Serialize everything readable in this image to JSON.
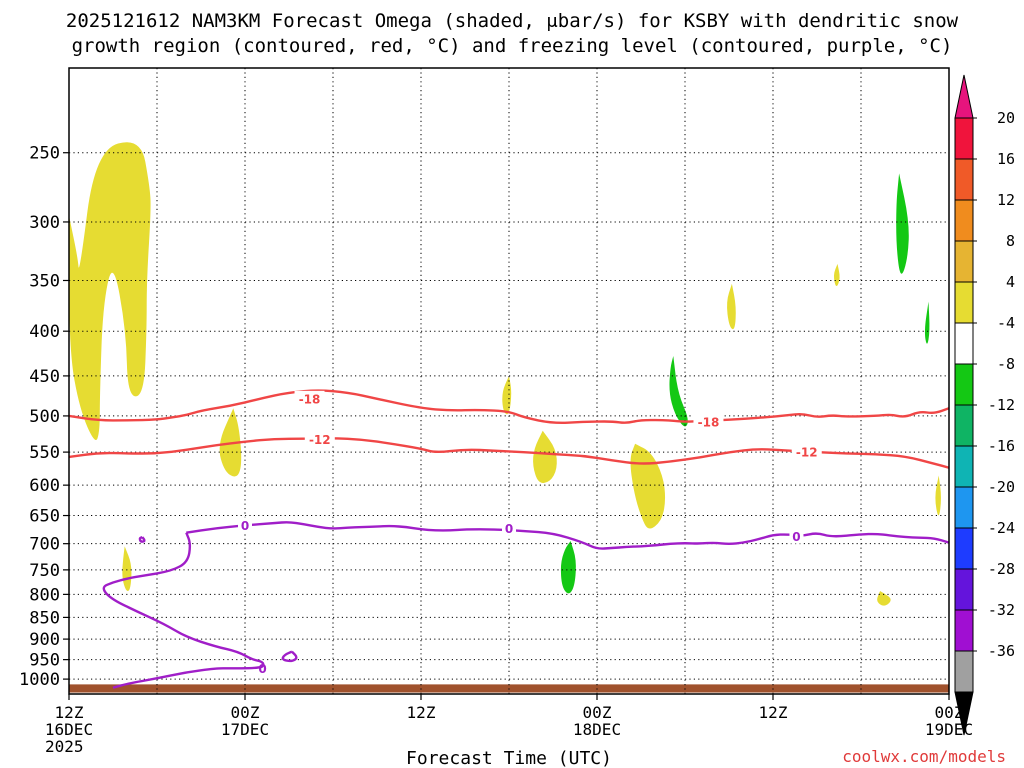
{
  "chart_data": {
    "type": "heatmap",
    "title_line1": "2025121612 NAM3KM Forecast Omega (shaded, μbar/s) for KSBY with dendritic snow",
    "title_line2": "growth region (contoured, red, °C) and freezing level (contoured, purple, °C)",
    "xlabel": "Forecast Time (UTC)",
    "credit": "coolwx.com/models",
    "x_range_hours": [
      0,
      60
    ],
    "y_range_hpa": [
      200,
      1040
    ],
    "y_scale": "log-pressure",
    "x_ticks": [
      {
        "hour": 0,
        "line1": "12Z",
        "line2": "16DEC",
        "line3": "2025"
      },
      {
        "hour": 12,
        "line1": "00Z",
        "line2": "17DEC",
        "line3": ""
      },
      {
        "hour": 24,
        "line1": "12Z",
        "line2": "",
        "line3": ""
      },
      {
        "hour": 36,
        "line1": "00Z",
        "line2": "18DEC",
        "line3": ""
      },
      {
        "hour": 48,
        "line1": "12Z",
        "line2": "",
        "line3": ""
      },
      {
        "hour": 60,
        "line1": "00Z",
        "line2": "19DEC",
        "line3": ""
      }
    ],
    "y_ticks": [
      250,
      300,
      350,
      400,
      450,
      500,
      550,
      600,
      650,
      700,
      750,
      800,
      850,
      900,
      950,
      1000
    ],
    "colorbar": {
      "levels": [
        20,
        16,
        12,
        8,
        4,
        -4,
        -8,
        -12,
        -16,
        -20,
        -24,
        -28,
        -32,
        -36
      ],
      "colors": [
        "#f0143c",
        "#f05a28",
        "#f08c1e",
        "#e6b432",
        "#e6dc32",
        "#ffffff",
        "#14c814",
        "#0fb464",
        "#0fb4b4",
        "#1e96f0",
        "#1e3cff",
        "#6414dc",
        "#a00fd2",
        "#a0a0a0"
      ],
      "top_color": "#e6147d",
      "bottom_color": "#000000"
    },
    "omega_shading": [
      {
        "color": "#e6dc32",
        "points": [
          [
            0,
            295
          ],
          [
            0.6,
            330
          ],
          [
            0.7,
            345
          ],
          [
            1.8,
            248
          ],
          [
            4.9,
            240
          ],
          [
            5.5,
            273
          ],
          [
            5.6,
            290
          ],
          [
            5.3,
            350
          ],
          [
            5.3,
            398
          ],
          [
            5.1,
            475
          ],
          [
            4.0,
            475
          ],
          [
            3.9,
            400
          ],
          [
            3.0,
            330
          ],
          [
            2.3,
            375
          ],
          [
            2.1,
            475
          ],
          [
            2.1,
            520
          ],
          [
            1.8,
            540
          ],
          [
            0.7,
            490
          ],
          [
            0,
            418
          ]
        ]
      },
      {
        "color": "#e6dc32",
        "points": [
          [
            11.2,
            490
          ],
          [
            11.6,
            515
          ],
          [
            11.8,
            565
          ],
          [
            11.5,
            590
          ],
          [
            10.6,
            580
          ],
          [
            10.1,
            540
          ]
        ]
      },
      {
        "color": "#e6dc32",
        "points": [
          [
            3.8,
            705
          ],
          [
            4.3,
            740
          ],
          [
            4.2,
            790
          ],
          [
            3.9,
            795
          ],
          [
            3.6,
            765
          ],
          [
            3.7,
            725
          ]
        ]
      },
      {
        "color": "#e6dc32",
        "points": [
          [
            30.0,
            450
          ],
          [
            30.2,
            470
          ],
          [
            30.0,
            500
          ],
          [
            29.6,
            495
          ],
          [
            29.5,
            470
          ]
        ]
      },
      {
        "color": "#e6dc32",
        "points": [
          [
            32.3,
            520
          ],
          [
            33.2,
            545
          ],
          [
            33.3,
            575
          ],
          [
            32.8,
            595
          ],
          [
            32.0,
            598
          ],
          [
            31.6,
            570
          ],
          [
            31.7,
            545
          ]
        ]
      },
      {
        "color": "#e6dc32",
        "points": [
          [
            38.6,
            538
          ],
          [
            39.7,
            550
          ],
          [
            40.5,
            585
          ],
          [
            40.7,
            625
          ],
          [
            40.4,
            660
          ],
          [
            39.5,
            678
          ],
          [
            39.0,
            652
          ],
          [
            38.5,
            610
          ],
          [
            38.2,
            560
          ]
        ]
      },
      {
        "color": "#e6dc32",
        "points": [
          [
            45.2,
            353
          ],
          [
            45.5,
            375
          ],
          [
            45.4,
            400
          ],
          [
            45.0,
            395
          ],
          [
            44.8,
            370
          ]
        ]
      },
      {
        "color": "#e6dc32",
        "points": [
          [
            52.4,
            335
          ],
          [
            52.6,
            348
          ],
          [
            52.3,
            358
          ],
          [
            52.1,
            345
          ]
        ]
      },
      {
        "color": "#e6dc32",
        "points": [
          [
            55.3,
            793
          ],
          [
            56.2,
            810
          ],
          [
            55.6,
            828
          ],
          [
            55.0,
            815
          ]
        ]
      },
      {
        "color": "#e6dc32",
        "points": [
          [
            59.3,
            585
          ],
          [
            59.5,
            620
          ],
          [
            59.3,
            660
          ],
          [
            59.0,
            620
          ]
        ]
      },
      {
        "color": "#14c814",
        "points": [
          [
            56.6,
            264
          ],
          [
            57.3,
            300
          ],
          [
            57.2,
            330
          ],
          [
            56.7,
            350
          ],
          [
            56.4,
            320
          ],
          [
            56.4,
            285
          ]
        ]
      },
      {
        "color": "#14c814",
        "points": [
          [
            58.6,
            370
          ],
          [
            58.7,
            400
          ],
          [
            58.5,
            418
          ],
          [
            58.3,
            400
          ]
        ]
      },
      {
        "color": "#14c814",
        "points": [
          [
            41.2,
            427
          ],
          [
            41.5,
            470
          ],
          [
            42.3,
            505
          ],
          [
            42.0,
            518
          ],
          [
            41.3,
            498
          ],
          [
            40.9,
            470
          ],
          [
            41.0,
            440
          ]
        ]
      },
      {
        "color": "#14c814",
        "points": [
          [
            34.2,
            695
          ],
          [
            34.6,
            730
          ],
          [
            34.5,
            780
          ],
          [
            34.1,
            803
          ],
          [
            33.6,
            785
          ],
          [
            33.5,
            740
          ],
          [
            33.8,
            710
          ]
        ]
      }
    ],
    "surface_band": {
      "color": "#a0522d",
      "top_hpa": 1014,
      "bottom_hpa": 1036
    },
    "dsg_contours": [
      {
        "value": -18,
        "label": "-18",
        "label_positions": [
          [
            16.4,
            478
          ],
          [
            43.6,
            508
          ]
        ],
        "points": [
          [
            0,
            500
          ],
          [
            2,
            506
          ],
          [
            4,
            506
          ],
          [
            6,
            505
          ],
          [
            7,
            502
          ],
          [
            8,
            499
          ],
          [
            9,
            493
          ],
          [
            11,
            487
          ],
          [
            13,
            478
          ],
          [
            15,
            470
          ],
          [
            17,
            467
          ],
          [
            19,
            470
          ],
          [
            21,
            478
          ],
          [
            24,
            490
          ],
          [
            26,
            493
          ],
          [
            28,
            492
          ],
          [
            30,
            494
          ],
          [
            31,
            502
          ],
          [
            33,
            510
          ],
          [
            35,
            508
          ],
          [
            37,
            507
          ],
          [
            38,
            510
          ],
          [
            39,
            505
          ],
          [
            41,
            506
          ],
          [
            42,
            508
          ],
          [
            44,
            506
          ],
          [
            46,
            504
          ],
          [
            48,
            501
          ],
          [
            49,
            499
          ],
          [
            50,
            497
          ],
          [
            51,
            502
          ],
          [
            52,
            499
          ],
          [
            53,
            501
          ],
          [
            55,
            500
          ],
          [
            56,
            498
          ],
          [
            57,
            502
          ],
          [
            58,
            494
          ],
          [
            59,
            497
          ],
          [
            60,
            490
          ]
        ]
      },
      {
        "value": -12,
        "label": "-12",
        "label_positions": [
          [
            17.1,
            532
          ],
          [
            50.3,
            550
          ]
        ],
        "points": [
          [
            0,
            557
          ],
          [
            2,
            551
          ],
          [
            4,
            552
          ],
          [
            6,
            552
          ],
          [
            8,
            547
          ],
          [
            10,
            540
          ],
          [
            12,
            535
          ],
          [
            14,
            531
          ],
          [
            16,
            531
          ],
          [
            18,
            530
          ],
          [
            20,
            532
          ],
          [
            22,
            538
          ],
          [
            24,
            545
          ],
          [
            25,
            551
          ],
          [
            27,
            546
          ],
          [
            29,
            548
          ],
          [
            31,
            550
          ],
          [
            33,
            553
          ],
          [
            35,
            555
          ],
          [
            37,
            562
          ],
          [
            39,
            568
          ],
          [
            41,
            564
          ],
          [
            43,
            558
          ],
          [
            45,
            550
          ],
          [
            47,
            545
          ],
          [
            49,
            548
          ],
          [
            51,
            550
          ],
          [
            53,
            552
          ],
          [
            55,
            553
          ],
          [
            57,
            556
          ],
          [
            59,
            567
          ],
          [
            60,
            573
          ]
        ]
      }
    ],
    "freezing_contours": [
      {
        "value": 0,
        "label": "0",
        "label_positions": [
          [
            12,
            667
          ],
          [
            30,
            673
          ],
          [
            49.6,
            687
          ],
          [
            13.2,
            972
          ]
        ],
        "points": [
          [
            8.0,
            680
          ],
          [
            10,
            672
          ],
          [
            12,
            667
          ],
          [
            14,
            663
          ],
          [
            15,
            661
          ],
          [
            16,
            665
          ],
          [
            17,
            670
          ],
          [
            18,
            673
          ],
          [
            19,
            671
          ],
          [
            20,
            670
          ],
          [
            21,
            669
          ],
          [
            22,
            668
          ],
          [
            23,
            670
          ],
          [
            24,
            674
          ],
          [
            25,
            676
          ],
          [
            26,
            676
          ],
          [
            27,
            674
          ],
          [
            29,
            674
          ],
          [
            31,
            677
          ],
          [
            33,
            681
          ],
          [
            35,
            697
          ],
          [
            36,
            710
          ],
          [
            37,
            708
          ],
          [
            38,
            706
          ],
          [
            39,
            705
          ],
          [
            40,
            703
          ],
          [
            41,
            700
          ],
          [
            42,
            699
          ],
          [
            43,
            700
          ],
          [
            44,
            698
          ],
          [
            45,
            701
          ],
          [
            46,
            698
          ],
          [
            47,
            692
          ],
          [
            48,
            684
          ],
          [
            49,
            683
          ],
          [
            50,
            686
          ],
          [
            51,
            680
          ],
          [
            52,
            688
          ],
          [
            54,
            683
          ],
          [
            55,
            682
          ],
          [
            56,
            685
          ],
          [
            57,
            688
          ],
          [
            58,
            689
          ],
          [
            59,
            690
          ],
          [
            60,
            698
          ]
        ]
      },
      {
        "value": 0,
        "label": "",
        "label_positions": [],
        "points": [
          [
            8.0,
            680
          ],
          [
            8.3,
            700
          ],
          [
            8.1,
            735
          ],
          [
            7.0,
            752
          ],
          [
            5.0,
            762
          ],
          [
            4.0,
            767
          ],
          [
            3.0,
            775
          ],
          [
            2.2,
            785
          ],
          [
            2.8,
            808
          ],
          [
            4.5,
            835
          ],
          [
            6.5,
            865
          ],
          [
            8.0,
            895
          ],
          [
            10.0,
            918
          ],
          [
            11.5,
            930
          ],
          [
            12.5,
            950
          ],
          [
            13.2,
            955
          ],
          [
            13.3,
            968
          ],
          [
            12.5,
            972
          ],
          [
            11.0,
            972
          ],
          [
            10.0,
            972
          ],
          [
            8.0,
            982
          ],
          [
            6.0,
            998
          ],
          [
            4.0,
            1012
          ],
          [
            3.0,
            1023
          ]
        ]
      },
      {
        "value": 0,
        "label": "",
        "label_positions": [],
        "points": [
          [
            15.2,
            930
          ],
          [
            15.6,
            945
          ],
          [
            15.2,
            955
          ],
          [
            14.5,
            950
          ],
          [
            14.7,
            938
          ],
          [
            15.2,
            930
          ]
        ]
      },
      {
        "value": 0,
        "label": "",
        "label_positions": [],
        "points": [
          [
            5.0,
            688
          ],
          [
            5.2,
            695
          ],
          [
            4.9,
            697
          ],
          [
            4.8,
            690
          ],
          [
            5.0,
            688
          ]
        ]
      }
    ],
    "contour_colors": {
      "dsg": "#f04646",
      "freezing": "#a01ec8"
    }
  }
}
